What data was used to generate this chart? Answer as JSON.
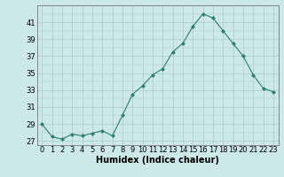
{
  "x": [
    0,
    1,
    2,
    3,
    4,
    5,
    6,
    7,
    8,
    9,
    10,
    11,
    12,
    13,
    14,
    15,
    16,
    17,
    18,
    19,
    20,
    21,
    22,
    23
  ],
  "y": [
    29,
    27.5,
    27.2,
    27.8,
    27.6,
    27.9,
    28.2,
    27.6,
    30,
    32.5,
    33.5,
    34.8,
    35.5,
    37.5,
    38.5,
    40.5,
    42,
    41.5,
    40,
    38.5,
    37,
    34.8,
    33.2,
    32.8
  ],
  "line_color": "#2e7d6e",
  "marker": "D",
  "marker_size": 2,
  "bg_color": "#cce8e8",
  "grid_color": "#aacccc",
  "xlabel": "Humidex (Indice chaleur)",
  "yticks": [
    27,
    29,
    31,
    33,
    35,
    37,
    39,
    41
  ],
  "xticks": [
    0,
    1,
    2,
    3,
    4,
    5,
    6,
    7,
    8,
    9,
    10,
    11,
    12,
    13,
    14,
    15,
    16,
    17,
    18,
    19,
    20,
    21,
    22,
    23
  ],
  "ylim": [
    26.5,
    43.0
  ],
  "xlim": [
    -0.5,
    23.5
  ],
  "tick_fontsize": 6,
  "xlabel_fontsize": 7
}
